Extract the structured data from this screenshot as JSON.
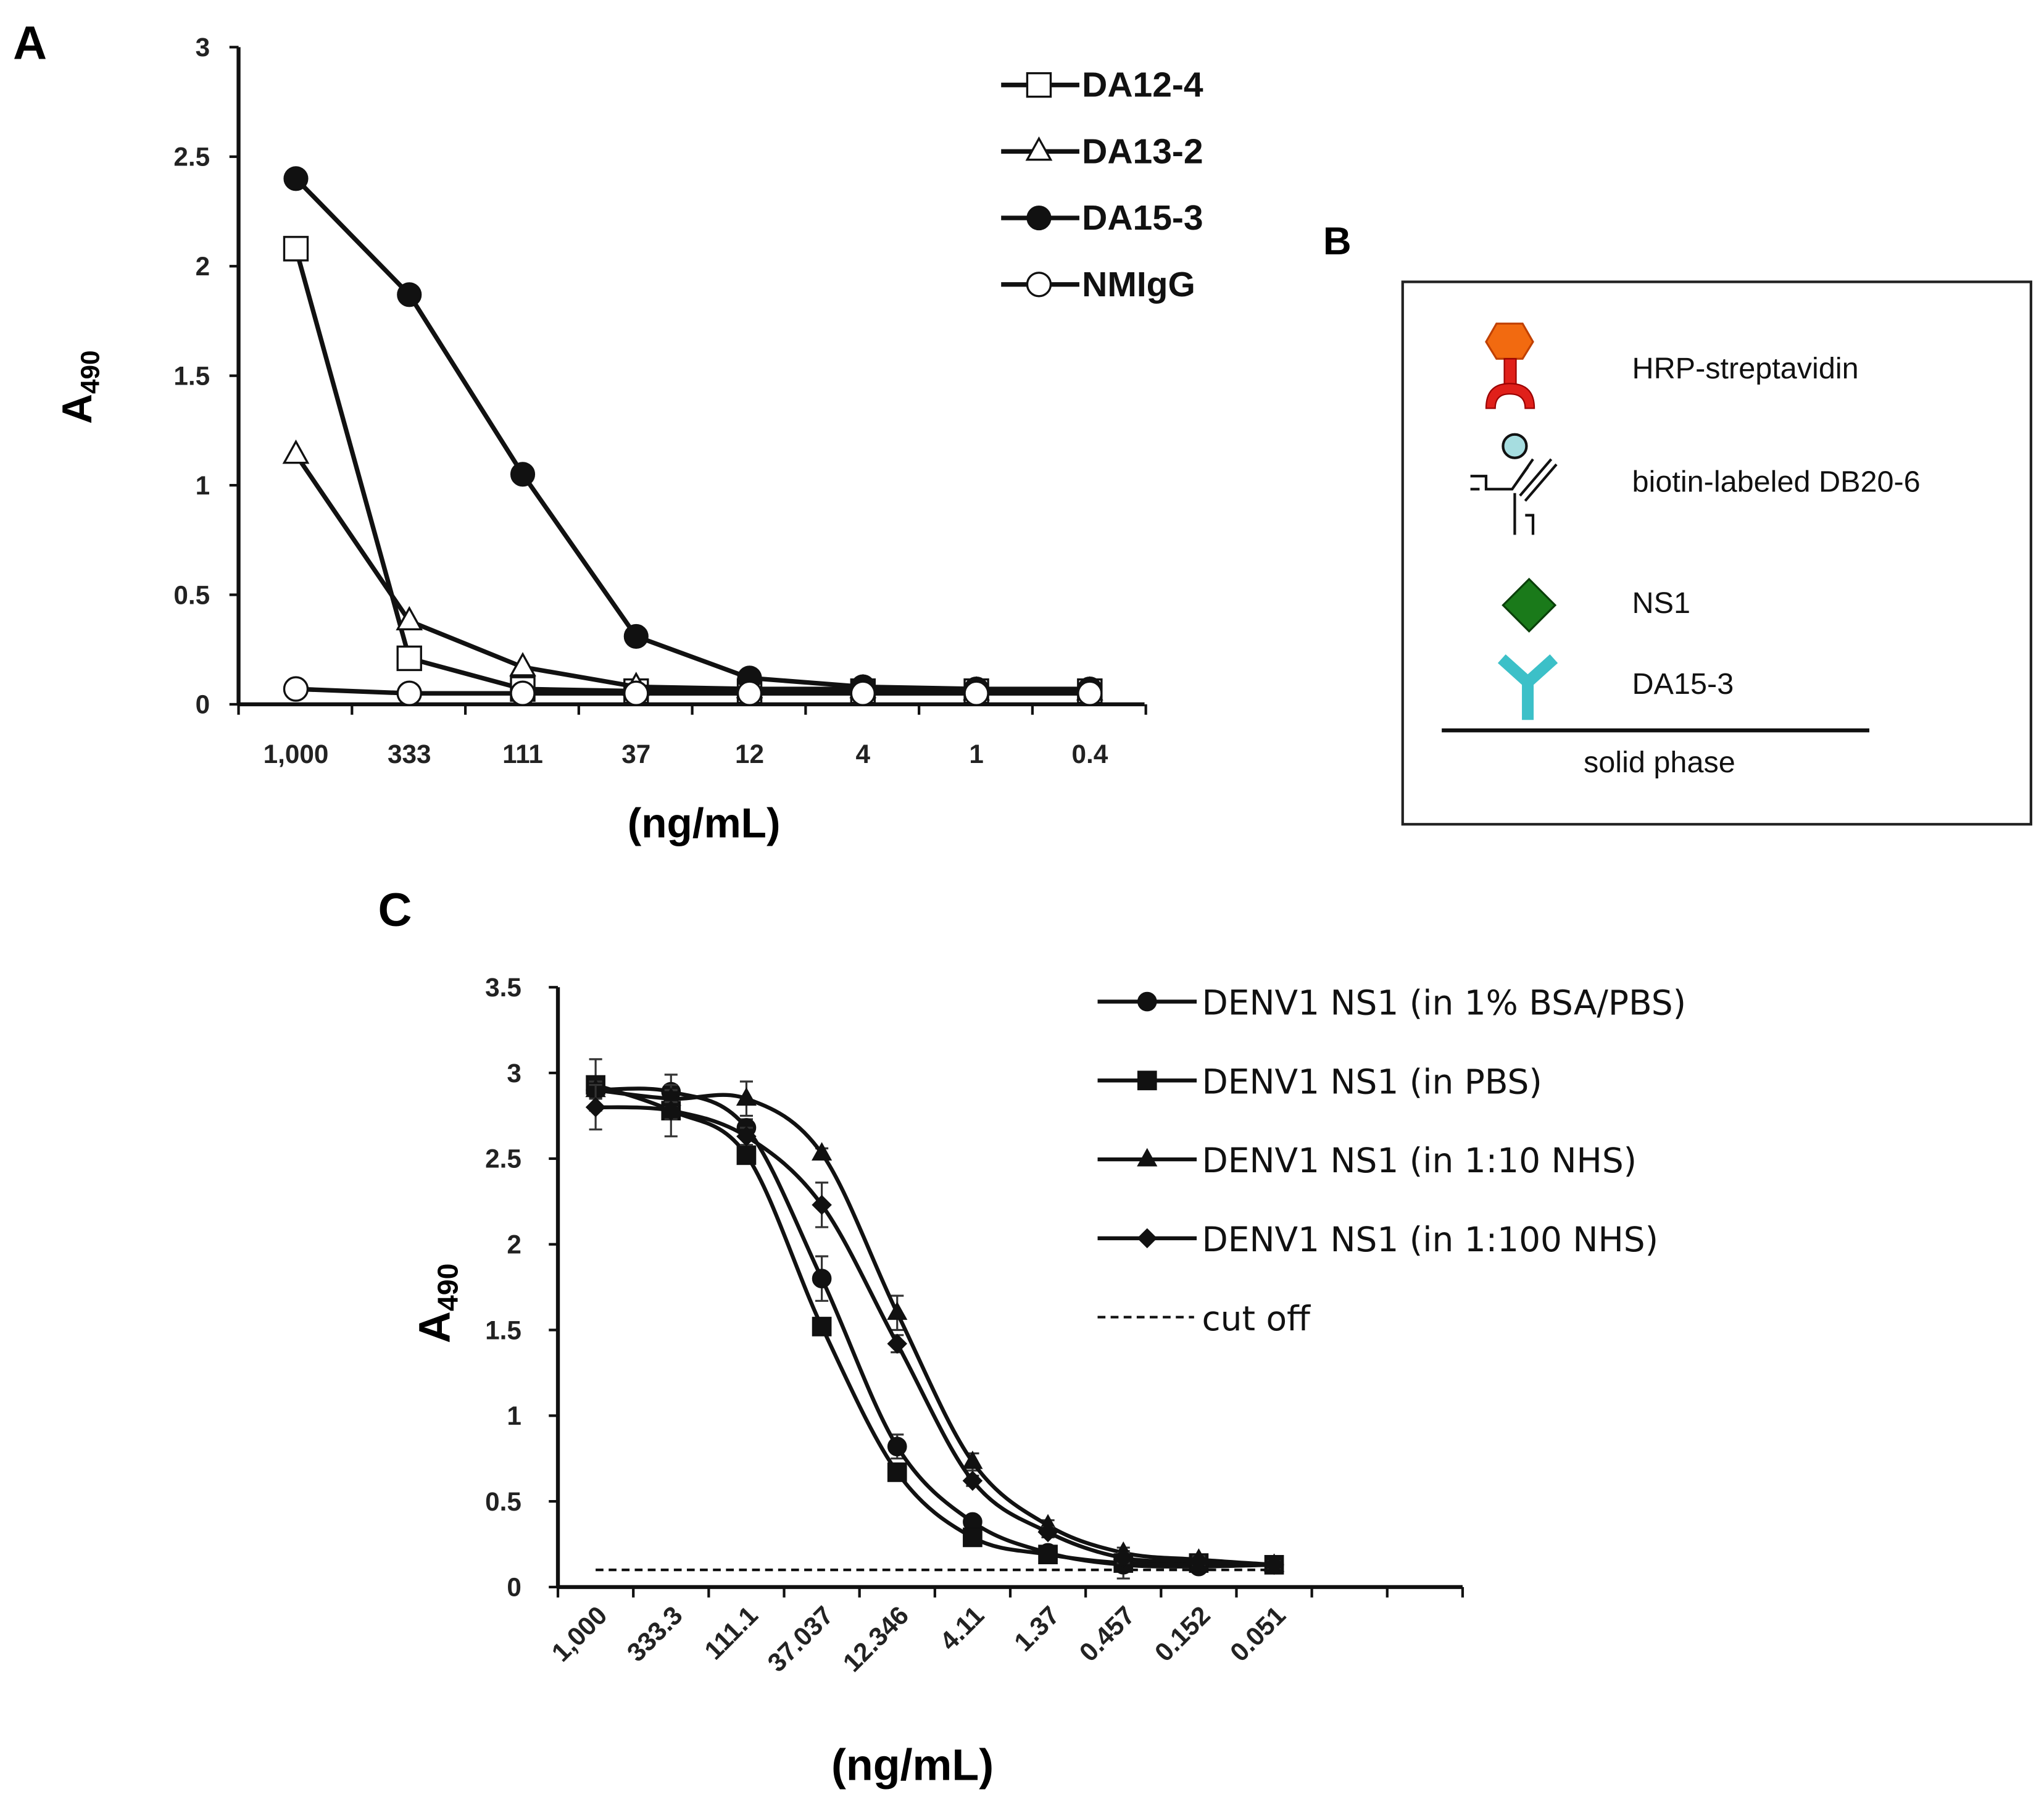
{
  "chart_data": [
    {
      "panel": "A",
      "type": "line",
      "xlabel": "(ng/mL)",
      "ylabel": "A490",
      "ylim": [
        0,
        3
      ],
      "yticks": [
        "0",
        "0.5",
        "1",
        "1.5",
        "2",
        "2.5",
        "3"
      ],
      "categories": [
        "1,000",
        "333",
        "111",
        "37",
        "12",
        "4",
        "1",
        "0.4"
      ],
      "legend_position": "top-right",
      "series": [
        {
          "name": "DA12-4",
          "marker": "open-square",
          "values": [
            2.08,
            0.21,
            0.07,
            0.06,
            0.06,
            0.06,
            0.06,
            0.06
          ]
        },
        {
          "name": "DA13-2",
          "marker": "open-triangle",
          "values": [
            1.14,
            0.38,
            0.17,
            0.08,
            0.07,
            0.07,
            0.06,
            0.06
          ]
        },
        {
          "name": "DA15-3",
          "marker": "filled-circle",
          "values": [
            2.4,
            1.87,
            1.05,
            0.31,
            0.12,
            0.08,
            0.07,
            0.07
          ]
        },
        {
          "name": "NMIgG",
          "marker": "open-circle",
          "values": [
            0.07,
            0.05,
            0.05,
            0.05,
            0.05,
            0.05,
            0.05,
            0.05
          ]
        }
      ]
    },
    {
      "panel": "C",
      "type": "line",
      "xlabel": "(ng/mL)",
      "ylabel": "A490",
      "ylim": [
        0,
        3.5
      ],
      "yticks": [
        "0",
        "0.5",
        "1",
        "1.5",
        "2",
        "2.5",
        "3",
        "3.5"
      ],
      "categories": [
        "1,000",
        "333.3",
        "111.1",
        "37.037",
        "12.346",
        "4.11",
        "1.37",
        "0.457",
        "0.152",
        "0.051"
      ],
      "legend_position": "top-right",
      "series": [
        {
          "name": "DENV1 NS1 (in 1% BSA/PBS)",
          "marker": "filled-circle",
          "values": [
            2.9,
            2.89,
            2.68,
            1.8,
            0.82,
            0.38,
            0.2,
            0.13,
            0.12,
            0.13
          ],
          "error": [
            0.05,
            0.1,
            0.05,
            0.13,
            0.07,
            0.03,
            0.03,
            0.08,
            0.02,
            0.02
          ]
        },
        {
          "name": "DENV1 NS1 (in PBS)",
          "marker": "filled-square",
          "values": [
            2.93,
            2.78,
            2.52,
            1.52,
            0.67,
            0.29,
            0.19,
            0.14,
            0.14,
            0.13
          ],
          "error": [
            0.15,
            0.15,
            0.05,
            0.05,
            0.03,
            0.03,
            0.03,
            0.03,
            0.02,
            0.02
          ]
        },
        {
          "name": "DENV1 NS1 (in 1:10 NHS)",
          "marker": "filled-triangle",
          "values": [
            2.9,
            2.85,
            2.85,
            2.53,
            1.6,
            0.73,
            0.36,
            0.2,
            0.16,
            0.13
          ],
          "error": [
            0.05,
            0.05,
            0.1,
            0.03,
            0.1,
            0.05,
            0.03,
            0.03,
            0.02,
            0.02
          ]
        },
        {
          "name": "DENV1 NS1 (in 1:100 NHS)",
          "marker": "filled-diamond",
          "values": [
            2.8,
            2.78,
            2.63,
            2.23,
            1.42,
            0.62,
            0.32,
            0.17,
            0.15,
            0.13
          ],
          "error": [
            0.13,
            0.05,
            0.05,
            0.13,
            0.05,
            0.03,
            0.03,
            0.03,
            0.02,
            0.02
          ]
        }
      ],
      "cutoff": {
        "name": "cut off",
        "value": 0.1
      }
    }
  ],
  "panel_labels": {
    "a": "A",
    "b": "B",
    "c": "C"
  },
  "diagram": {
    "items": [
      {
        "label": "HRP-streptavidin",
        "color": "#f26a10",
        "stem_color": "#e0201a"
      },
      {
        "label": "biotin-labeled DB20-6",
        "color": "#a6dde0"
      },
      {
        "label": "NS1",
        "color": "#1a7a1a"
      },
      {
        "label": "DA15-3",
        "color": "#3cc0c8"
      }
    ],
    "solid_phase": "solid phase"
  }
}
